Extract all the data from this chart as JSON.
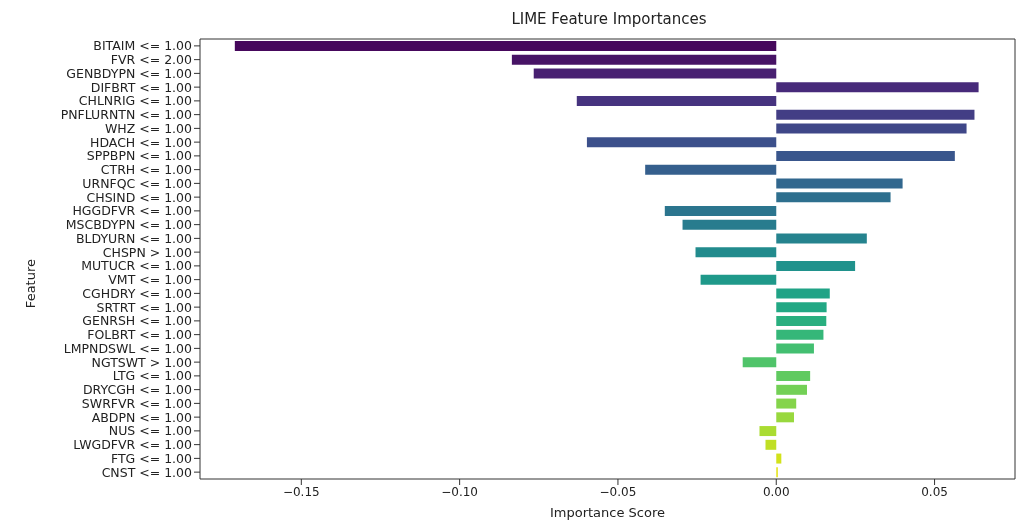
{
  "chart_data": {
    "type": "bar",
    "orientation": "horizontal",
    "title": "LIME Feature Importances",
    "xlabel": "Importance Score",
    "ylabel": "Feature",
    "categories": [
      "BITAIM <= 1.00",
      "FVR <= 2.00",
      "GENBDYPN <= 1.00",
      "DIFBRT <= 1.00",
      "CHLNRIG <= 1.00",
      "PNFLURNTN <= 1.00",
      "WHZ <= 1.00",
      "HDACH <= 1.00",
      "SPPBPN <= 1.00",
      "CTRH <= 1.00",
      "URNFQC <= 1.00",
      "CHSIND <= 1.00",
      "HGGDFVR <= 1.00",
      "MSCBDYPN <= 1.00",
      "BLDYURN <= 1.00",
      "CHSPN > 1.00",
      "MUTUCR <= 1.00",
      "VMT <= 1.00",
      "CGHDRY <= 1.00",
      "SRTRT <= 1.00",
      "GENRSH <= 1.00",
      "FOLBRT <= 1.00",
      "LMPNDSWL <= 1.00",
      "NGTSWT > 1.00",
      "LTG <= 1.00",
      "DRYCGH <= 1.00",
      "SWRFVR <= 1.00",
      "ABDPN <= 1.00",
      "NUS <= 1.00",
      "LWGDFVR <= 1.00",
      "FTG <= 1.00",
      "CNST <= 1.00"
    ],
    "values": [
      -0.171,
      -0.0835,
      -0.0766,
      0.0639,
      -0.063,
      0.0626,
      0.0601,
      -0.0598,
      0.0564,
      -0.0414,
      0.0399,
      0.0361,
      -0.0352,
      -0.0296,
      0.0286,
      -0.0255,
      0.0249,
      -0.0239,
      0.0169,
      0.0159,
      0.0158,
      0.0149,
      0.0119,
      -0.0106,
      0.0107,
      0.0097,
      0.0063,
      0.0056,
      -0.0053,
      -0.0034,
      0.0016,
      0.0005
    ],
    "colors": [
      "#46085c",
      "#471365",
      "#482071",
      "#472a7a",
      "#46337f",
      "#433e85",
      "#3f4788",
      "#3c508b",
      "#39568c",
      "#355f8d",
      "#31678e",
      "#2e6f8e",
      "#2b758e",
      "#287c8e",
      "#25838e",
      "#228b8d",
      "#20928c",
      "#1f998a",
      "#20a386",
      "#22a884",
      "#29af7f",
      "#35b779",
      "#43bf71",
      "#50c46a",
      "#60ca60",
      "#73d056",
      "#84d44b",
      "#98d83e",
      "#aadc32",
      "#c0df25",
      "#d2e21b",
      "#e5e419"
    ],
    "xlim": [
      -0.182,
      0.0754
    ],
    "xticks": [
      {
        "value": -0.15,
        "label": "−0.15"
      },
      {
        "value": -0.1,
        "label": "−0.10"
      },
      {
        "value": -0.05,
        "label": "−0.05"
      },
      {
        "value": 0,
        "label": "0.00"
      },
      {
        "value": 0.05,
        "label": "0.05"
      }
    ]
  }
}
